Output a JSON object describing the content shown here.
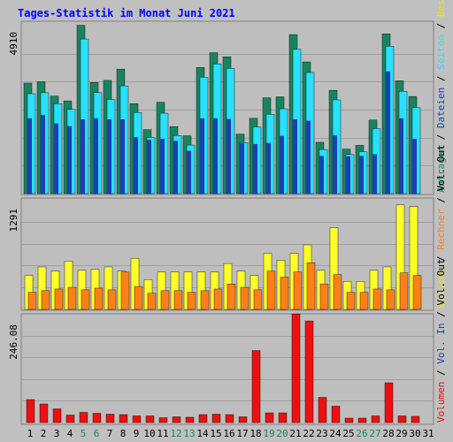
{
  "title": "Tages-Statistik im Monat Juni 2021",
  "colors": {
    "background": "#c0c0c0",
    "plot_bg": "#bebebe",
    "grid": "#a0a0a0",
    "title": "#0000ff",
    "anfragen": "#178460",
    "dateien": "#28e0ff",
    "seiten": "#1a40b4",
    "besuche": "#ffff28",
    "rechner": "#ff8018",
    "volumen": "#ee1010",
    "weekend_label": "#178460",
    "weekday_label": "#000000"
  },
  "chart_data": [
    {
      "type": "bar",
      "panel": "top",
      "ylim": [
        0,
        4910
      ],
      "ytick_label": "4910",
      "grid": true,
      "right_label": [
        {
          "text": "Anfragen",
          "color": "#178460"
        },
        {
          "text": " / ",
          "color": "#000000"
        },
        {
          "text": "Dateien",
          "color": "#1a40b4"
        },
        {
          "text": " / ",
          "color": "#000000"
        },
        {
          "text": "Seiten",
          "color": "#28e0ff"
        },
        {
          "text": " / ",
          "color": "#000000"
        },
        {
          "text": "Besuche",
          "color": "#e8e800"
        }
      ],
      "categories": [
        "1",
        "2",
        "3",
        "4",
        "5",
        "6",
        "7",
        "8",
        "9",
        "10",
        "11",
        "12",
        "13",
        "14",
        "15",
        "16",
        "17",
        "18",
        "19",
        "20",
        "21",
        "22",
        "23",
        "24",
        "25",
        "26",
        "27",
        "28",
        "29",
        "30"
      ],
      "series": [
        {
          "name": "Anfragen",
          "color": "#178460",
          "values": [
            3230,
            3270,
            2850,
            2710,
            4920,
            3250,
            3310,
            3640,
            2630,
            1870,
            2670,
            1960,
            1690,
            3690,
            4120,
            4000,
            1740,
            2200,
            2800,
            2830,
            4650,
            3850,
            1500,
            3020,
            1300,
            1410,
            2150,
            4670,
            3300,
            2840
          ]
        },
        {
          "name": "Dateien",
          "color": "#28e0ff",
          "values": [
            2920,
            2950,
            2630,
            2460,
            4520,
            2950,
            2750,
            3150,
            2370,
            1640,
            2350,
            1700,
            1420,
            3400,
            3790,
            3660,
            1490,
            1950,
            2320,
            2480,
            4220,
            3540,
            1290,
            2740,
            1140,
            1220,
            1900,
            4310,
            2990,
            2510
          ]
        },
        {
          "name": "Seiten",
          "color": "#1a40b4",
          "values": [
            2200,
            2300,
            2050,
            1970,
            2170,
            2200,
            2170,
            2170,
            1650,
            1570,
            1600,
            1540,
            1250,
            2200,
            2200,
            2180,
            1470,
            1450,
            1480,
            1690,
            2170,
            2130,
            1100,
            1700,
            1090,
            1100,
            1150,
            3570,
            2200,
            1600
          ]
        }
      ]
    },
    {
      "type": "bar",
      "panel": "middle",
      "ylim": [
        0,
        1291
      ],
      "ytick_label": "1291",
      "grid": true,
      "right_label": [
        {
          "text": "Besuche",
          "color": "#e8e800"
        },
        {
          "text": " / ",
          "color": "#000000"
        },
        {
          "text": "Rechner",
          "color": "#ff8018"
        },
        {
          "text": " / ",
          "color": "#000000"
        },
        {
          "text": "Vol. Out",
          "color": "#000000"
        }
      ],
      "categories": [
        "1",
        "2",
        "3",
        "4",
        "5",
        "6",
        "7",
        "8",
        "9",
        "10",
        "11",
        "12",
        "13",
        "14",
        "15",
        "16",
        "17",
        "18",
        "19",
        "20",
        "21",
        "22",
        "23",
        "24",
        "25",
        "26",
        "27",
        "28",
        "29",
        "30"
      ],
      "series": [
        {
          "name": "Besuche",
          "color": "#ffff28",
          "values": [
            400,
            500,
            450,
            570,
            460,
            470,
            500,
            450,
            600,
            350,
            440,
            440,
            440,
            440,
            440,
            540,
            450,
            400,
            660,
            580,
            660,
            760,
            460,
            960,
            330,
            330,
            460,
            500,
            1230,
            1210
          ]
        },
        {
          "name": "Rechner",
          "color": "#ff8018",
          "values": [
            200,
            220,
            240,
            260,
            230,
            250,
            230,
            440,
            270,
            190,
            220,
            220,
            200,
            220,
            240,
            300,
            260,
            230,
            450,
            380,
            440,
            550,
            300,
            410,
            200,
            200,
            240,
            230,
            430,
            400
          ]
        }
      ]
    },
    {
      "type": "bar",
      "panel": "bottom",
      "ylim": [
        0,
        246.08
      ],
      "ytick_label": "246.08",
      "grid": true,
      "right_label": [
        {
          "text": "Volumen",
          "color": "#ee1010"
        },
        {
          "text": " / ",
          "color": "#000000"
        },
        {
          "text": "Vol. In",
          "color": "#1a40b4"
        },
        {
          "text": " / ",
          "color": "#000000"
        },
        {
          "text": "Vol. Out",
          "color": "#000000"
        }
      ],
      "categories": [
        "1",
        "2",
        "3",
        "4",
        "5",
        "6",
        "7",
        "8",
        "9",
        "10",
        "11",
        "12",
        "13",
        "14",
        "15",
        "16",
        "17",
        "18",
        "19",
        "20",
        "21",
        "22",
        "23",
        "24",
        "25",
        "26",
        "27",
        "28",
        "29",
        "30"
      ],
      "series": [
        {
          "name": "Volumen",
          "color": "#ee1010",
          "values": [
            52,
            42,
            31,
            17,
            23,
            21,
            19,
            18,
            15,
            15,
            11,
            13,
            12,
            18,
            19,
            18,
            13,
            163,
            22,
            22,
            246,
            230,
            57,
            37,
            10,
            10,
            15,
            90,
            15,
            14
          ]
        }
      ]
    }
  ],
  "x_labels": [
    {
      "text": "1",
      "weekend": false
    },
    {
      "text": "2",
      "weekend": false
    },
    {
      "text": "3",
      "weekend": false
    },
    {
      "text": "4",
      "weekend": false
    },
    {
      "text": "5",
      "weekend": true
    },
    {
      "text": "6",
      "weekend": true
    },
    {
      "text": "7",
      "weekend": false
    },
    {
      "text": "8",
      "weekend": false
    },
    {
      "text": "9",
      "weekend": false
    },
    {
      "text": "10",
      "weekend": false
    },
    {
      "text": "11",
      "weekend": false
    },
    {
      "text": "12",
      "weekend": true
    },
    {
      "text": "13",
      "weekend": true
    },
    {
      "text": "14",
      "weekend": false
    },
    {
      "text": "15",
      "weekend": false
    },
    {
      "text": "16",
      "weekend": false
    },
    {
      "text": "17",
      "weekend": false
    },
    {
      "text": "18",
      "weekend": false
    },
    {
      "text": "19",
      "weekend": true
    },
    {
      "text": "20",
      "weekend": true
    },
    {
      "text": "21",
      "weekend": false
    },
    {
      "text": "22",
      "weekend": false
    },
    {
      "text": "23",
      "weekend": false
    },
    {
      "text": "24",
      "weekend": false
    },
    {
      "text": "25",
      "weekend": false
    },
    {
      "text": "26",
      "weekend": true
    },
    {
      "text": "27",
      "weekend": true
    },
    {
      "text": "28",
      "weekend": false
    },
    {
      "text": "29",
      "weekend": false
    },
    {
      "text": "30",
      "weekend": false
    },
    {
      "text": "31",
      "weekend": false
    }
  ]
}
